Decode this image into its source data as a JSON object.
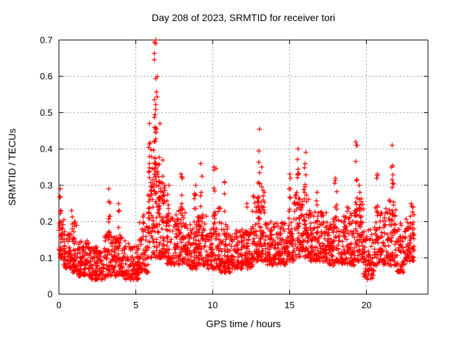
{
  "page": {
    "background": "#ffffff",
    "text_color": "#000000"
  },
  "chart_data": {
    "type": "scatter",
    "title": "Day 208 of 2023, SRMTID for receiver tori",
    "xlabel": "GPS time / hours",
    "ylabel": "SRMTID / TECUs",
    "xlim": [
      0,
      24
    ],
    "ylim": [
      0,
      0.7
    ],
    "xtick_values": [
      0,
      5,
      10,
      15,
      20
    ],
    "xtick_labels": [
      "0",
      "5",
      "10",
      "15",
      "20"
    ],
    "ytick_values": [
      0,
      0.1,
      0.2,
      0.3,
      0.4,
      0.5,
      0.6,
      0.7
    ],
    "ytick_labels": [
      "0",
      "0.1",
      "0.2",
      "0.3",
      "0.4",
      "0.5",
      "0.6",
      "0.7"
    ],
    "grid": {
      "show": true,
      "style": "dotted",
      "color": "#9e9e9e",
      "x_at": [
        5,
        10,
        15,
        20
      ],
      "y_at": [
        0.1,
        0.2,
        0.3,
        0.4,
        0.5,
        0.6
      ]
    },
    "legend": "none",
    "marker": {
      "shape": "plus",
      "color": "#ff0000",
      "size": 7,
      "stroke_width": 1.2
    },
    "series_name": "SRMTID",
    "frame_color": "#000000",
    "notable_values": {
      "max_y": 0.7,
      "max_at_hour": 6.25,
      "baseline_band": "0.05-0.20",
      "data_start_hour": 0.0,
      "data_end_hour": 23.1
    },
    "seed": 20230728,
    "band_profile": {
      "columns": [
        "start_hour",
        "end_hour",
        "y_low",
        "y_high",
        "n_points"
      ],
      "rows": [
        [
          0.0,
          0.3,
          0.1,
          0.24,
          35
        ],
        [
          0.3,
          0.8,
          0.07,
          0.18,
          55
        ],
        [
          0.8,
          1.2,
          0.06,
          0.2,
          45
        ],
        [
          1.2,
          2.0,
          0.05,
          0.15,
          90
        ],
        [
          2.0,
          3.0,
          0.04,
          0.13,
          110
        ],
        [
          3.0,
          3.6,
          0.05,
          0.17,
          65
        ],
        [
          3.6,
          4.3,
          0.05,
          0.16,
          75
        ],
        [
          4.3,
          5.2,
          0.04,
          0.14,
          95
        ],
        [
          5.2,
          5.8,
          0.06,
          0.22,
          65
        ],
        [
          5.8,
          6.5,
          0.1,
          0.4,
          80
        ],
        [
          6.5,
          7.0,
          0.1,
          0.32,
          55
        ],
        [
          7.0,
          7.8,
          0.08,
          0.22,
          85
        ],
        [
          7.8,
          8.3,
          0.08,
          0.24,
          55
        ],
        [
          8.3,
          9.0,
          0.07,
          0.2,
          75
        ],
        [
          9.0,
          9.6,
          0.08,
          0.22,
          65
        ],
        [
          9.6,
          10.0,
          0.07,
          0.18,
          45
        ],
        [
          10.0,
          10.5,
          0.07,
          0.24,
          55
        ],
        [
          10.5,
          11.2,
          0.06,
          0.2,
          75
        ],
        [
          11.2,
          12.6,
          0.07,
          0.18,
          150
        ],
        [
          12.6,
          13.4,
          0.09,
          0.28,
          85
        ],
        [
          13.4,
          14.8,
          0.08,
          0.2,
          150
        ],
        [
          14.8,
          15.3,
          0.09,
          0.24,
          55
        ],
        [
          15.3,
          16.3,
          0.1,
          0.28,
          105
        ],
        [
          16.3,
          17.5,
          0.09,
          0.23,
          130
        ],
        [
          17.5,
          18.3,
          0.08,
          0.22,
          85
        ],
        [
          18.3,
          19.2,
          0.08,
          0.24,
          95
        ],
        [
          19.2,
          19.8,
          0.09,
          0.28,
          65
        ],
        [
          19.8,
          20.5,
          0.04,
          0.18,
          75
        ],
        [
          20.5,
          21.4,
          0.08,
          0.24,
          95
        ],
        [
          21.4,
          22.0,
          0.08,
          0.26,
          65
        ],
        [
          22.0,
          22.5,
          0.06,
          0.2,
          55
        ],
        [
          22.5,
          23.1,
          0.09,
          0.24,
          65
        ]
      ]
    },
    "spikes": {
      "columns": [
        "hour",
        "y_base",
        "y_top",
        "n_points"
      ],
      "rows": [
        [
          0.1,
          0.18,
          0.29,
          8
        ],
        [
          0.85,
          0.15,
          0.23,
          6
        ],
        [
          3.3,
          0.15,
          0.29,
          10
        ],
        [
          3.9,
          0.14,
          0.25,
          6
        ],
        [
          5.9,
          0.2,
          0.47,
          14
        ],
        [
          6.25,
          0.25,
          0.7,
          22
        ],
        [
          6.35,
          0.25,
          0.6,
          16
        ],
        [
          6.55,
          0.22,
          0.47,
          12
        ],
        [
          6.8,
          0.2,
          0.37,
          10
        ],
        [
          7.1,
          0.18,
          0.3,
          8
        ],
        [
          8.0,
          0.16,
          0.33,
          10
        ],
        [
          8.85,
          0.15,
          0.3,
          8
        ],
        [
          9.25,
          0.16,
          0.36,
          9
        ],
        [
          10.15,
          0.16,
          0.35,
          10
        ],
        [
          10.8,
          0.15,
          0.31,
          7
        ],
        [
          12.2,
          0.14,
          0.25,
          5
        ],
        [
          13.0,
          0.18,
          0.455,
          16
        ],
        [
          13.2,
          0.16,
          0.35,
          8
        ],
        [
          15.0,
          0.16,
          0.33,
          9
        ],
        [
          15.55,
          0.18,
          0.4,
          12
        ],
        [
          16.0,
          0.18,
          0.39,
          12
        ],
        [
          16.8,
          0.15,
          0.28,
          6
        ],
        [
          18.0,
          0.15,
          0.32,
          9
        ],
        [
          19.35,
          0.18,
          0.42,
          14
        ],
        [
          19.55,
          0.16,
          0.3,
          7
        ],
        [
          20.7,
          0.15,
          0.33,
          8
        ],
        [
          21.7,
          0.18,
          0.41,
          12
        ],
        [
          22.9,
          0.14,
          0.25,
          5
        ]
      ]
    }
  }
}
